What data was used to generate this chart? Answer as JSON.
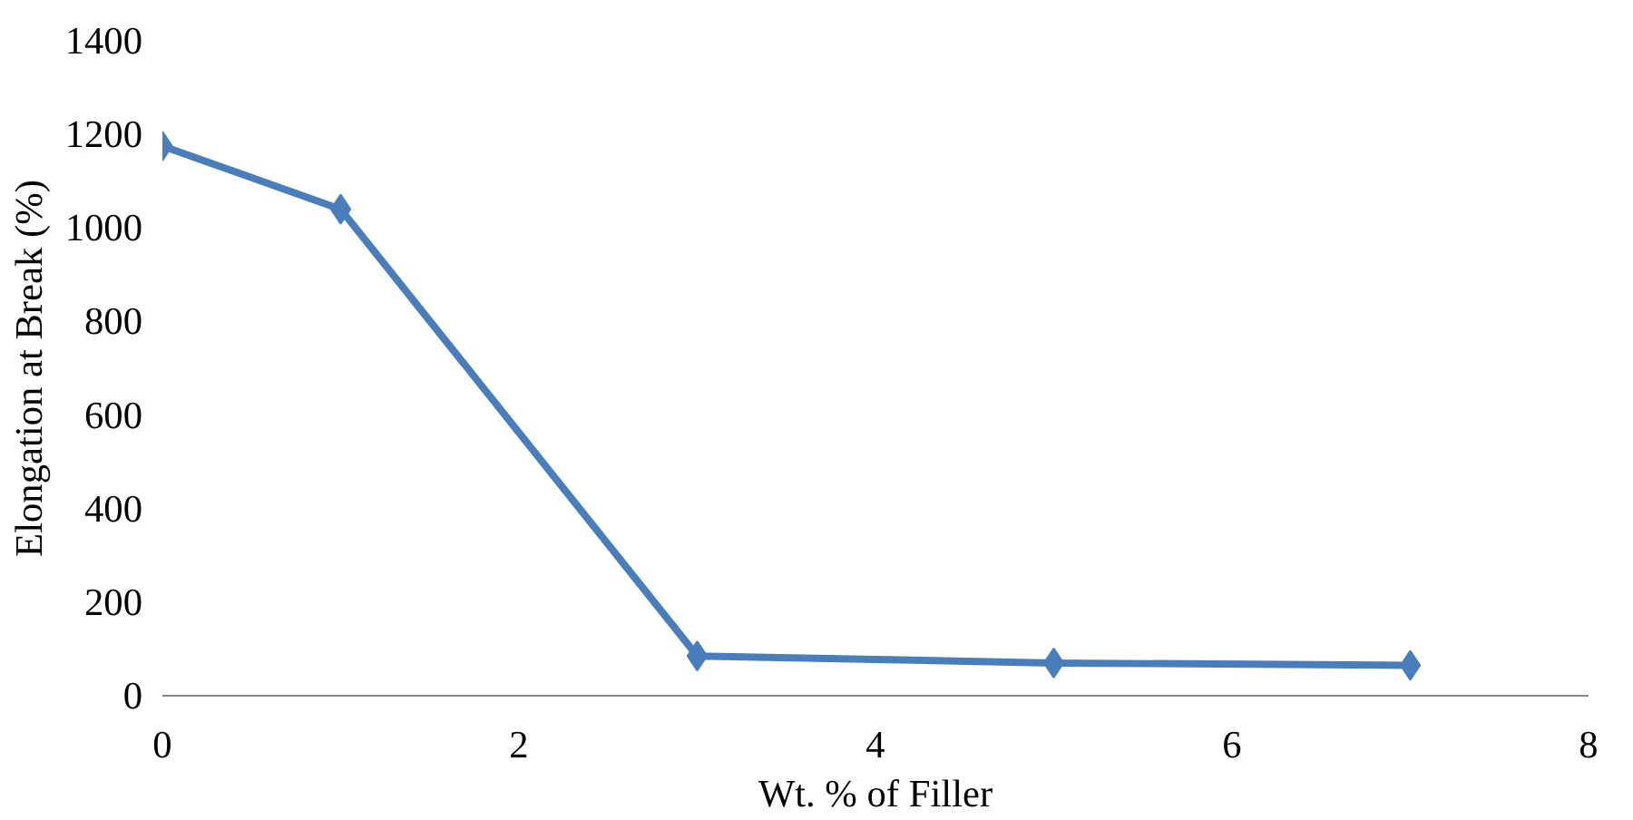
{
  "chart_data": {
    "type": "line",
    "xlabel": "Wt. % of Filler",
    "ylabel": "Elongation at Break (%)",
    "x": [
      0,
      1,
      3,
      5,
      7
    ],
    "series": [
      {
        "color": "#4a7ebb",
        "values": [
          1175,
          1040,
          85,
          70,
          65
        ]
      }
    ],
    "xlim": [
      0,
      8
    ],
    "xticks": [
      0,
      2,
      4,
      6,
      8
    ],
    "ylim": [
      0,
      1400
    ],
    "yticks": [
      0,
      200,
      400,
      600,
      800,
      1000,
      1200,
      1400
    ],
    "marker": "diamond",
    "line_style": "solid"
  }
}
